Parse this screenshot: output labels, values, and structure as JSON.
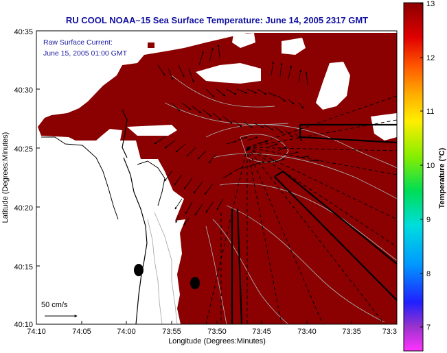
{
  "title": "RU COOL  NOAA–15  Sea Surface Temperature:  June 14, 2005 2317 GMT",
  "annotation": {
    "line1": "Raw Surface Current:",
    "line2": "June 15, 2005 01:00 GMT"
  },
  "scale": {
    "label": "50 cm/s"
  },
  "xaxis": {
    "label": "Longitude (Degrees:Minutes)",
    "ticks": [
      "74:10",
      "74:05",
      "74:00",
      "73:55",
      "73:50",
      "73:45",
      "73:40",
      "73:35",
      "73:3"
    ]
  },
  "yaxis": {
    "label": "Latitude (Degrees:Minutes)",
    "ticks": [
      "40:35",
      "40:30",
      "40:25",
      "40:20",
      "40:15",
      "40:10"
    ]
  },
  "colorbar": {
    "label": "Temperature (°C)",
    "ticks": [
      "13",
      "12",
      "11",
      "10",
      "9",
      "8",
      "7"
    ]
  },
  "colors": {
    "sst": "#8b0000",
    "land": "#ffffff",
    "title": "#1010a0"
  },
  "map_data": {
    "type": "sst_with_current_vectors",
    "region": "New York Bight / New Jersey coast",
    "sst_range_c": [
      6.5,
      13
    ],
    "dominant_sst_c": 13,
    "lon_range": [
      "74:10W",
      "73:30W"
    ],
    "lat_range": [
      "40:10N",
      "40:35N"
    ]
  }
}
